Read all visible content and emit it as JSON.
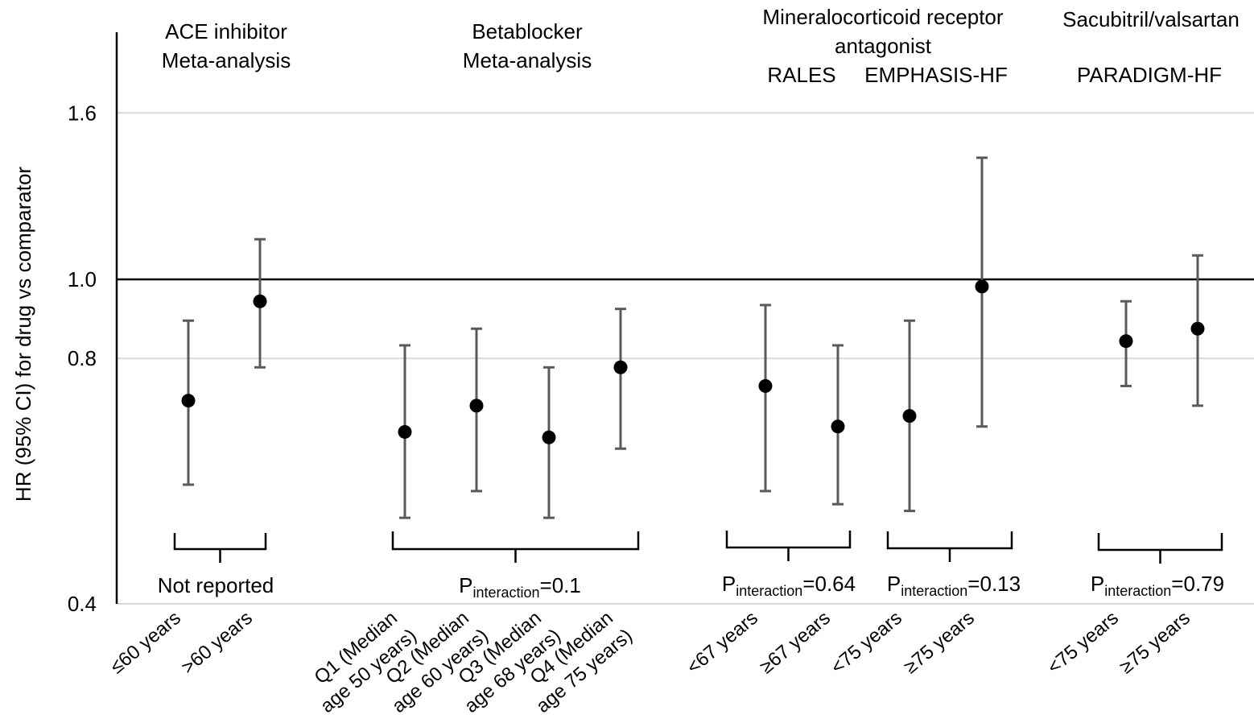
{
  "chart_data": {
    "type": "scatter",
    "ylabel": "HR (95% CI) for drug vs comparator",
    "y_scale": "log",
    "ylim": [
      0.4,
      1.85
    ],
    "y_ticks": [
      0.4,
      0.8,
      1.0,
      1.6
    ],
    "y_tick_labels": [
      "0.4",
      "0.8",
      "1.0",
      "1.6"
    ],
    "reference_line": 1.0,
    "gridlines": [
      0.8,
      1.6
    ],
    "colors": {
      "point": "#000000",
      "error_bar": "#5a5a5a",
      "grid": "#d9d9d9",
      "axis": "#000000"
    },
    "group_titles": [
      {
        "lines": [
          "ACE inhibitor",
          "Meta-analysis"
        ]
      },
      {
        "lines": [
          "Betablocker",
          "Meta-analysis"
        ]
      },
      {
        "lines": [
          "Mineralocorticoid receptor",
          "antagonist"
        ]
      },
      {
        "lines": [
          "RALES"
        ]
      },
      {
        "lines": [
          "EMPHASIS-HF"
        ]
      },
      {
        "lines": [
          "Sacubitril/valsartan"
        ]
      },
      {
        "lines": [
          "PARADIGM-HF"
        ]
      }
    ],
    "interaction_labels": [
      {
        "kind": "text",
        "text": "Not reported"
      },
      {
        "kind": "p",
        "prefix": "P",
        "subscript": "interaction",
        "value": "=0.1"
      },
      {
        "kind": "p",
        "prefix": "P",
        "subscript": "interaction",
        "value": "=0.64"
      },
      {
        "kind": "p",
        "prefix": "P",
        "subscript": "interaction",
        "value": "=0.13"
      },
      {
        "kind": "p",
        "prefix": "P",
        "subscript": "interaction",
        "value": "=0.79"
      }
    ],
    "series": [
      {
        "category": [
          "≤60 years"
        ],
        "hr": 0.71,
        "lower": 0.56,
        "upper": 0.89
      },
      {
        "category": [
          ">60 years"
        ],
        "hr": 0.94,
        "lower": 0.78,
        "upper": 1.12
      },
      {
        "category": [
          "Q1 (Median",
          "age 50 years)"
        ],
        "hr": 0.65,
        "lower": 0.51,
        "upper": 0.83
      },
      {
        "category": [
          "Q2 (Median",
          "age 60 years)"
        ],
        "hr": 0.7,
        "lower": 0.55,
        "upper": 0.87
      },
      {
        "category": [
          "Q3 (Median",
          "age 68 years)"
        ],
        "hr": 0.64,
        "lower": 0.51,
        "upper": 0.78
      },
      {
        "category": [
          "Q4 (Median",
          "age 75 years)"
        ],
        "hr": 0.78,
        "lower": 0.62,
        "upper": 0.92
      },
      {
        "category": [
          "<67 years"
        ],
        "hr": 0.74,
        "lower": 0.55,
        "upper": 0.93
      },
      {
        "category": [
          "≥67 years"
        ],
        "hr": 0.66,
        "lower": 0.53,
        "upper": 0.83
      },
      {
        "category": [
          "<75 years"
        ],
        "hr": 0.68,
        "lower": 0.52,
        "upper": 0.89
      },
      {
        "category": [
          "≥75 years"
        ],
        "hr": 0.98,
        "lower": 0.66,
        "upper": 1.41
      },
      {
        "category": [
          "<75 years"
        ],
        "hr": 0.84,
        "lower": 0.74,
        "upper": 0.94
      },
      {
        "category": [
          "≥75 years"
        ],
        "hr": 0.87,
        "lower": 0.7,
        "upper": 1.07
      }
    ]
  }
}
